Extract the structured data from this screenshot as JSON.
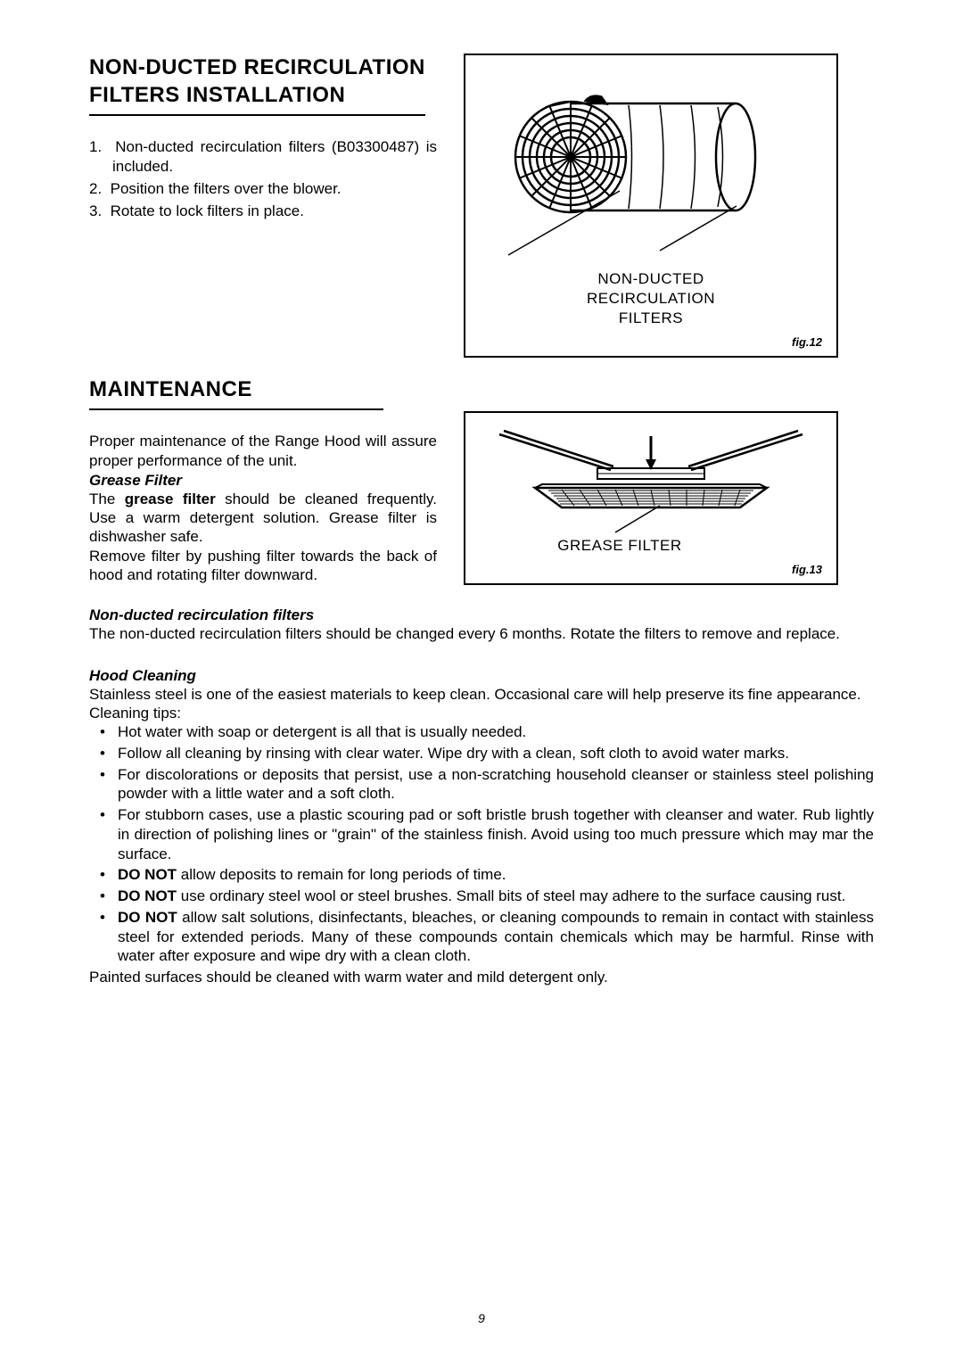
{
  "section1": {
    "title_line1": "NON-DUCTED RECIRCULATION",
    "title_line2": "FILTERS INSTALLATION",
    "items": [
      "1.  Non-ducted recirculation filters (B03300487) is included.",
      "2.  Position the filters over the blower.",
      "3.  Rotate to lock filters in place."
    ]
  },
  "fig12": {
    "label_line1": "NON-DUCTED",
    "label_line2": "RECIRCULATION",
    "label_line3": "FILTERS",
    "caption": "fig.12"
  },
  "section2": {
    "title": "MAINTENANCE",
    "intro": "Proper maintenance of the Range Hood will assure proper performance of the unit.",
    "grease_filter_head": "Grease Filter",
    "grease_text1_pre": "The ",
    "grease_text1_bold": "grease filter",
    "grease_text1_post": " should be cleaned frequently. Use a warm detergent solution. Grease filter is dishwasher safe.",
    "grease_text2": "Remove filter by pushing filter towards the back of hood and rotating filter downward."
  },
  "fig13": {
    "label": "GREASE FILTER",
    "caption": "fig.13"
  },
  "section3": {
    "head": "Non-ducted recirculation filters",
    "text": "The non-ducted recirculation filters should be changed every 6 months. Rotate the filters to remove and replace."
  },
  "section4": {
    "head": "Hood Cleaning",
    "intro": "Stainless steel is one of the easiest materials to keep clean. Occasional care will help preserve its fine appearance.",
    "tips_label": "Cleaning tips:",
    "bullets": [
      {
        "pre": "",
        "bold": "",
        "post": "Hot water with soap or detergent is all that is usually needed."
      },
      {
        "pre": "",
        "bold": "",
        "post": "Follow all cleaning by rinsing with clear water. Wipe dry with a clean, soft cloth to avoid water marks."
      },
      {
        "pre": "",
        "bold": "",
        "post": "For discolorations or deposits that persist, use a non-scratching household cleanser or stainless steel polishing powder with a little water and a soft cloth."
      },
      {
        "pre": "",
        "bold": "",
        "post": "For stubborn cases, use a plastic scouring pad or soft bristle brush together with cleanser and water. Rub lightly in direction of polishing lines or \"grain\" of the stainless finish. Avoid using too much pressure which may mar the surface."
      },
      {
        "pre": "",
        "bold": "DO NOT",
        "post": " allow deposits to remain for long periods of time."
      },
      {
        "pre": "",
        "bold": "DO NOT",
        "post": " use ordinary steel wool or steel brushes. Small bits of steel may adhere to the surface causing rust."
      },
      {
        "pre": "",
        "bold": "DO NOT",
        "post": " allow salt solutions, disinfectants, bleaches, or cleaning compounds to remain in contact with stainless steel for extended periods. Many of these compounds contain chemicals which may be harmful. Rinse with water after exposure and wipe dry with a clean cloth."
      }
    ],
    "footer": "Painted surfaces should be cleaned with warm water and mild detergent only."
  },
  "page_number": "9",
  "colors": {
    "text": "#000000",
    "border": "#000000",
    "background": "#ffffff"
  }
}
